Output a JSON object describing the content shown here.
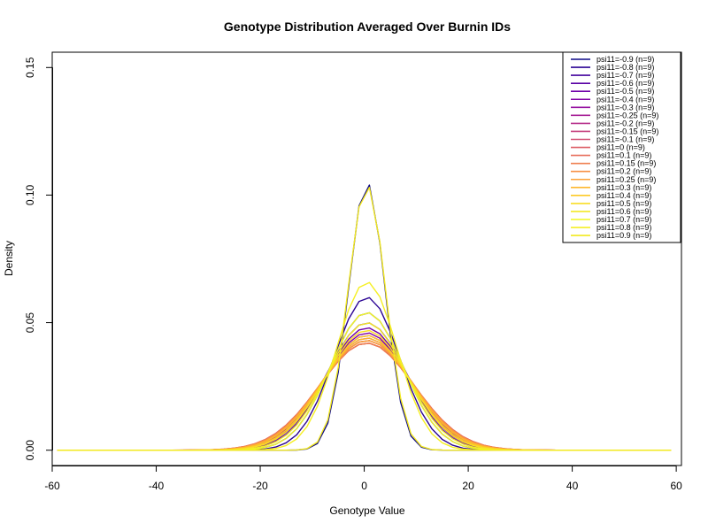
{
  "chart_data": {
    "type": "line",
    "title": "Genotype Distribution Averaged Over Burnin IDs",
    "xlabel": "Genotype Value",
    "ylabel": "Density",
    "xlim": [
      -60,
      61
    ],
    "ylim": [
      -0.006,
      0.156
    ],
    "xticks": [
      -60,
      -40,
      -20,
      0,
      20,
      40,
      60
    ],
    "yticks": [
      0.0,
      0.05,
      0.1,
      0.15
    ],
    "xtick_labels": [
      "-60",
      "-40",
      "-20",
      "0",
      "20",
      "40",
      "60"
    ],
    "ytick_labels": [
      "0.00",
      "0.05",
      "0.10",
      "0.15"
    ],
    "legend_position": "top-right",
    "grid": false,
    "x": [
      -59,
      -57,
      -55,
      -53,
      -51,
      -49,
      -47,
      -45,
      -43,
      -41,
      -39,
      -37,
      -35,
      -33,
      -31,
      -29,
      -27,
      -25,
      -23,
      -21,
      -19,
      -17,
      -15,
      -13,
      -11,
      -9,
      -7,
      -5,
      -3,
      -1,
      1,
      3,
      5,
      7,
      9,
      11,
      13,
      15,
      17,
      19,
      21,
      23,
      25,
      27,
      29,
      31,
      33,
      35,
      37,
      39,
      41,
      43,
      45,
      47,
      49,
      51,
      53,
      55,
      57,
      59
    ],
    "series": [
      {
        "name": "psi11=-0.9 (n=9)",
        "color": "#0d0887",
        "amplitude": 0.105,
        "sigma": 3.5
      },
      {
        "name": "psi11=-0.8 (n=9)",
        "color": "#2c0594",
        "amplitude": 0.06,
        "sigma": 6.3
      },
      {
        "name": "psi11=-0.7 (n=9)",
        "color": "#43039e",
        "amplitude": 0.054,
        "sigma": 7.0
      },
      {
        "name": "psi11=-0.6 (n=9)",
        "color": "#5901a5",
        "amplitude": 0.05,
        "sigma": 7.6
      },
      {
        "name": "psi11=-0.5 (n=9)",
        "color": "#6e00a8",
        "amplitude": 0.048,
        "sigma": 7.9
      },
      {
        "name": "psi11=-0.4 (n=9)",
        "color": "#8305a7",
        "amplitude": 0.046,
        "sigma": 8.2
      },
      {
        "name": "psi11=-0.3 (n=9)",
        "color": "#9511a1",
        "amplitude": 0.045,
        "sigma": 8.4
      },
      {
        "name": "psi11=-0.25 (n=9)",
        "color": "#a72197",
        "amplitude": 0.044,
        "sigma": 8.6
      },
      {
        "name": "psi11=-0.2 (n=9)",
        "color": "#b6308b",
        "amplitude": 0.043,
        "sigma": 8.8
      },
      {
        "name": "psi11=-0.15 (n=9)",
        "color": "#c5407e",
        "amplitude": 0.043,
        "sigma": 8.9
      },
      {
        "name": "psi11=-0.1 (n=9)",
        "color": "#d14e72",
        "amplitude": 0.042,
        "sigma": 9.0
      },
      {
        "name": "psi11=0 (n=9)",
        "color": "#dd5e66",
        "amplitude": 0.042,
        "sigma": 9.1
      },
      {
        "name": "psi11=0.1 (n=9)",
        "color": "#e76e5b",
        "amplitude": 0.042,
        "sigma": 9.1
      },
      {
        "name": "psi11=0.15 (n=9)",
        "color": "#ef7f4f",
        "amplitude": 0.042,
        "sigma": 9.0
      },
      {
        "name": "psi11=0.2 (n=9)",
        "color": "#f79044",
        "amplitude": 0.043,
        "sigma": 8.9
      },
      {
        "name": "psi11=0.25 (n=9)",
        "color": "#fba238",
        "amplitude": 0.043,
        "sigma": 8.8
      },
      {
        "name": "psi11=0.3 (n=9)",
        "color": "#feb72d",
        "amplitude": 0.044,
        "sigma": 8.6
      },
      {
        "name": "psi11=0.4 (n=9)",
        "color": "#fdca26",
        "amplitude": 0.045,
        "sigma": 8.3
      },
      {
        "name": "psi11=0.5 (n=9)",
        "color": "#f9dd24",
        "amplitude": 0.047,
        "sigma": 8.0
      },
      {
        "name": "psi11=0.6 (n=9)",
        "color": "#f3e926",
        "amplitude": 0.05,
        "sigma": 7.5
      },
      {
        "name": "psi11=0.7 (n=9)",
        "color": "#f0f921",
        "amplitude": 0.054,
        "sigma": 7.0
      },
      {
        "name": "psi11=0.8 (n=9)",
        "color": "#f5ef24",
        "amplitude": 0.066,
        "sigma": 5.8
      },
      {
        "name": "psi11=0.9 (n=9)",
        "color": "#f2e91f",
        "amplitude": 0.104,
        "sigma": 3.6
      }
    ]
  }
}
